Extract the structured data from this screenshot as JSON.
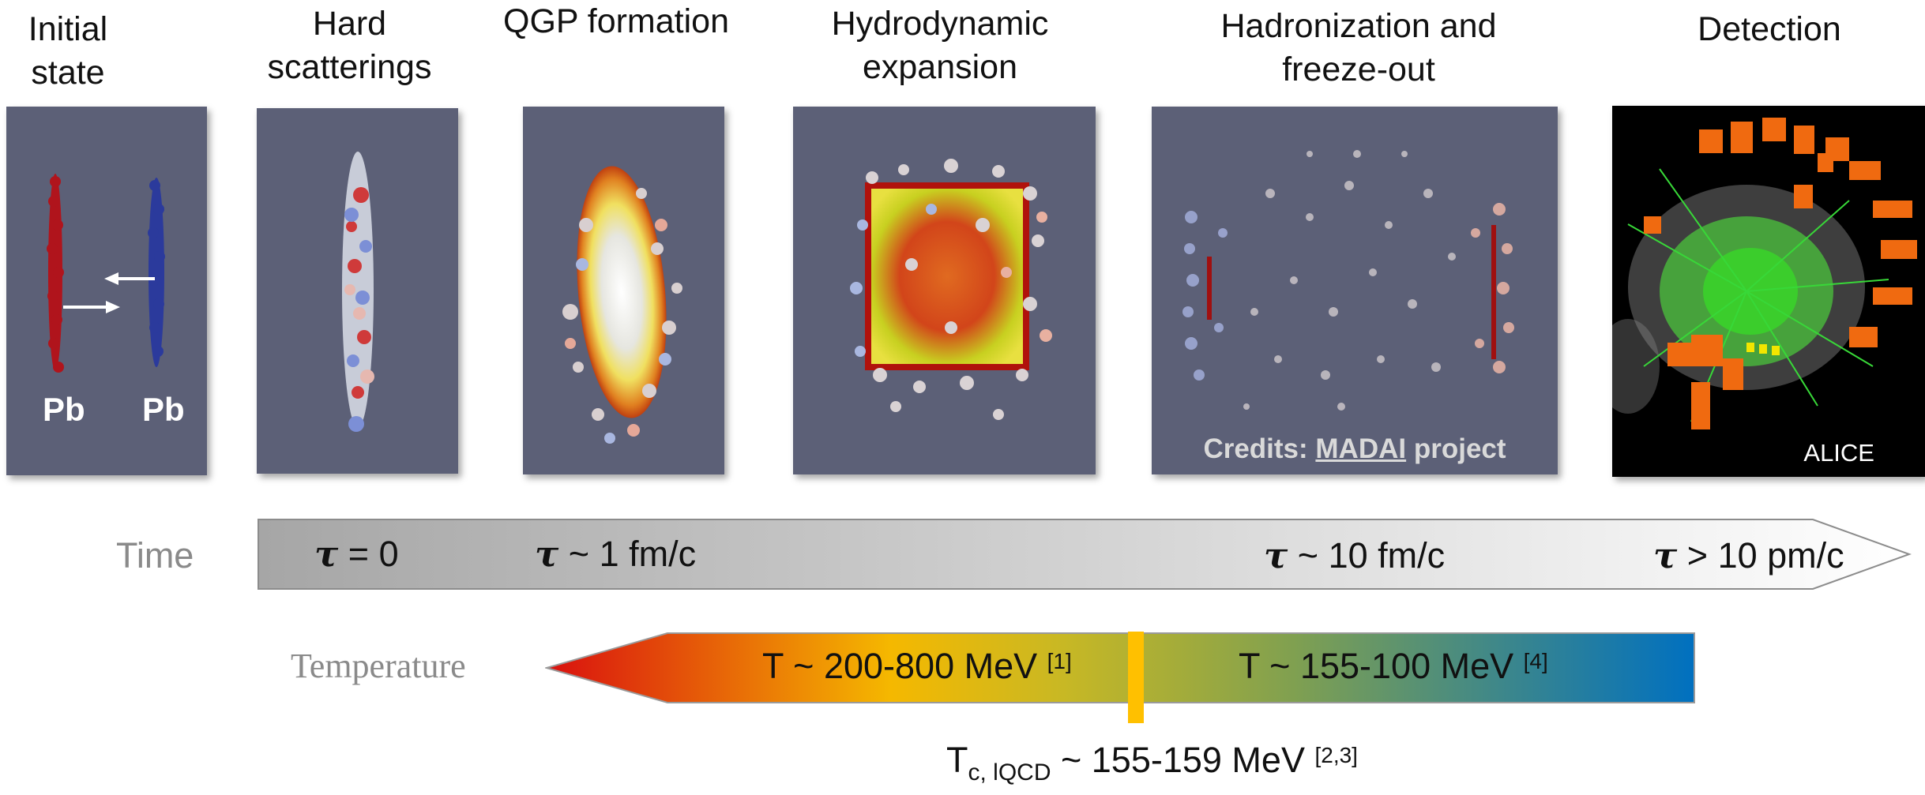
{
  "stages": [
    {
      "title_lines": [
        "Initial state"
      ]
    },
    {
      "title_lines": [
        "Hard",
        "scatterings"
      ]
    },
    {
      "title_lines": [
        "QGP formation"
      ]
    },
    {
      "title_lines": [
        "Hydrodynamic",
        "expansion"
      ]
    },
    {
      "title_lines": [
        "Hadronization and",
        "freeze-out"
      ]
    },
    {
      "title_lines": [
        "Detection"
      ]
    }
  ],
  "initial_state": {
    "left_nucleus": "Pb",
    "right_nucleus": "Pb"
  },
  "credits": {
    "prefix": "Credits: ",
    "link": "MADAI",
    "suffix": " project"
  },
  "detection": {
    "experiment": "ALICE"
  },
  "time_axis": {
    "label": "Time",
    "symbol": "τ",
    "marks": [
      " = 0",
      " ~ 1 fm/c",
      " ~ 10 fm/c",
      " > 10 pm/c"
    ]
  },
  "temperature_axis": {
    "label": "Temperature",
    "hot": {
      "text": "T ~ 200-800 MeV ",
      "ref": "[1]"
    },
    "cool": {
      "text": "T ~ 155-100 MeV ",
      "ref": "[4]"
    },
    "critical": {
      "main": "T",
      "sub": "c, lQCD",
      "text": " ~ 155-159 MeV ",
      "ref": "[2,3]"
    }
  },
  "colors": {
    "panel_bg": "#5c6077",
    "nucleus_red": "#b0141c",
    "nucleus_blue": "#2b3a9c",
    "time_arrow_start": "#a6a6a6",
    "time_arrow_end": "#ffffff",
    "temp_hot": "#d9100f",
    "temp_mid": "#f5b800",
    "temp_cold": "#0070c0",
    "critical_marker": "#ffc000"
  }
}
